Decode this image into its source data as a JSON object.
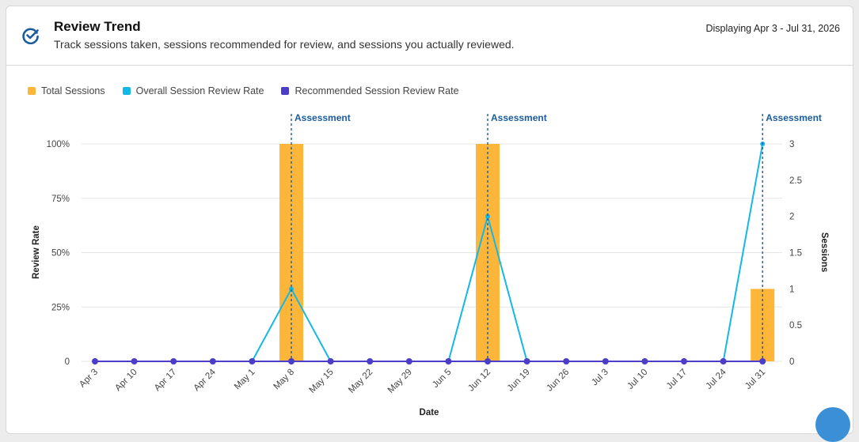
{
  "header": {
    "title": "Review Trend",
    "subtitle": "Track sessions taken, sessions recommended for review, and sessions you actually reviewed.",
    "range": "Displaying Apr 3 - Jul 31, 2026",
    "icon": "check-circle-icon"
  },
  "colors": {
    "total_sessions": "#FDB53A",
    "overall_rate": "#14B8E6",
    "recommended_rate": "#4C3DC9",
    "assessment": "#1A5C9E"
  },
  "chart_data": {
    "type": "bar",
    "legend": [
      "Total Sessions",
      "Overall Session Review Rate",
      "Recommended Session Review Rate"
    ],
    "legend_position": "top-left",
    "x": [
      "Apr 3",
      "Apr 10",
      "Apr 17",
      "Apr 24",
      "May 1",
      "May 8",
      "May 15",
      "May 22",
      "May 29",
      "Jun 5",
      "Jun 12",
      "Jun 19",
      "Jun 26",
      "Jul 3",
      "Jul 10",
      "Jul 17",
      "Jul 24",
      "Jul 31"
    ],
    "xlabel": "Date",
    "ylabel_left": "Review Rate",
    "ylabel_right": "Sessions",
    "y_left_ticks": [
      "0",
      "25%",
      "50%",
      "75%",
      "100%"
    ],
    "y_left_range": [
      0,
      100
    ],
    "y_right_ticks": [
      "0",
      "0.5",
      "1",
      "1.5",
      "2",
      "2.5",
      "3"
    ],
    "y_right_range": [
      0,
      3
    ],
    "grid": true,
    "series": [
      {
        "name": "Total Sessions",
        "type": "bar",
        "axis": "right",
        "values": [
          0,
          0,
          0,
          0,
          0,
          3,
          0,
          0,
          0,
          0,
          3,
          0,
          0,
          0,
          0,
          0,
          0,
          1
        ]
      },
      {
        "name": "Overall Session Review Rate",
        "type": "line",
        "axis": "left",
        "values": [
          0,
          0,
          0,
          0,
          0,
          33.3,
          0,
          0,
          0,
          0,
          66.7,
          0,
          0,
          0,
          0,
          0,
          0,
          100
        ]
      },
      {
        "name": "Recommended Session Review Rate",
        "type": "line",
        "axis": "left",
        "values": [
          0,
          0,
          0,
          0,
          0,
          0,
          0,
          0,
          0,
          0,
          0,
          0,
          0,
          0,
          0,
          0,
          0,
          0
        ]
      }
    ],
    "annotations": [
      {
        "label": "Assessment",
        "x": "May 8"
      },
      {
        "label": "Assessment",
        "x": "Jun 12"
      },
      {
        "label": "Assessment",
        "x": "Jul 31"
      }
    ]
  }
}
